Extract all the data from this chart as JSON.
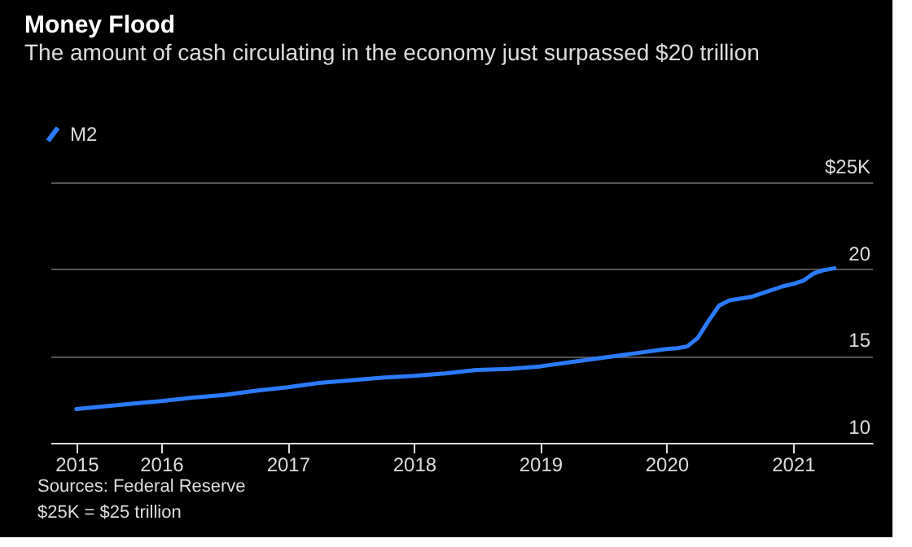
{
  "chart_data": {
    "type": "line",
    "title": "Money Flood",
    "subtitle": "The amount of cash circulating in the economy just surpassed $20 trillion",
    "x": [
      "2015-05",
      "2015-11",
      "2016-01",
      "2016-04",
      "2016-07",
      "2016-10",
      "2017-01",
      "2017-04",
      "2017-07",
      "2017-10",
      "2018-01",
      "2018-04",
      "2018-07",
      "2018-10",
      "2019-01",
      "2019-04",
      "2019-07",
      "2019-10",
      "2020-01",
      "2020-02",
      "2020-03",
      "2020-04",
      "2020-05",
      "2020-06",
      "2020-07",
      "2020-09",
      "2020-10",
      "2020-12",
      "2021-01",
      "2021-02",
      "2021-03",
      "2021-04",
      "2021-05"
    ],
    "series": [
      {
        "name": "M2",
        "color": "#2b7bff",
        "values": [
          11.95,
          12.3,
          12.4,
          12.6,
          12.75,
          13.0,
          13.2,
          13.45,
          13.6,
          13.75,
          13.85,
          14.0,
          14.2,
          14.25,
          14.4,
          14.65,
          14.9,
          15.15,
          15.4,
          15.45,
          15.55,
          16.05,
          17.0,
          17.9,
          18.2,
          18.4,
          18.6,
          19.0,
          19.15,
          19.35,
          19.75,
          19.95,
          20.05
        ]
      }
    ],
    "xlim": [
      "2015-02-15",
      "2021-08-20"
    ],
    "xticks": [
      {
        "value": "2015-05",
        "label": "2015"
      },
      "2016",
      "2017",
      "2018",
      "2019",
      "2020",
      "2021"
    ],
    "ylim": [
      10,
      25
    ],
    "yticks": [
      10,
      15,
      20,
      {
        "value": 25,
        "label": "$25K"
      }
    ],
    "grid": "y",
    "legend": "top left",
    "annotations": [
      "Sources: Federal Reserve",
      "$25K = $25 trillion"
    ]
  }
}
